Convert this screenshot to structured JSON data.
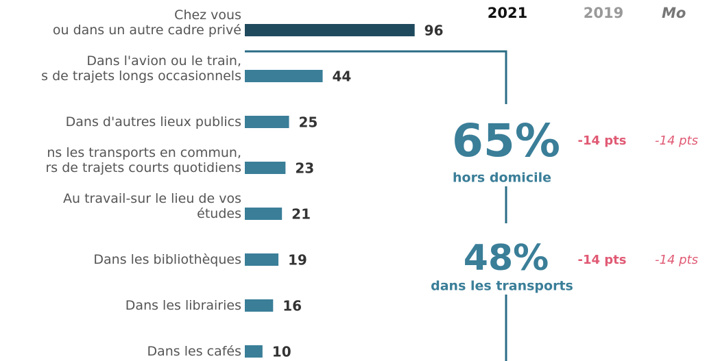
{
  "chart_data": {
    "type": "bar",
    "orientation": "horizontal",
    "categories": [
      [
        "Chez vous",
        "ou dans un autre cadre privé"
      ],
      [
        "Dans l'avion ou le train,",
        "s de trajets longs occasionnels"
      ],
      [
        "Dans d'autres lieux publics"
      ],
      [
        "ns les transports en commun,",
        "rs de trajets courts quotidiens"
      ],
      [
        "Au travail-sur le lieu de vos",
        "études"
      ],
      [
        "Dans les bibliothèques"
      ],
      [
        "Dans les librairies"
      ],
      [
        "Dans les cafés"
      ]
    ],
    "values": [
      96,
      44,
      25,
      23,
      21,
      19,
      16,
      10
    ],
    "colors": [
      "#1f4a5e",
      "#3a7e98",
      "#3a7e98",
      "#3a7e98",
      "#3a7e98",
      "#3a7e98",
      "#3a7e98",
      "#3a7e98"
    ],
    "xlim": [
      0,
      100
    ],
    "column_headers": [
      "2021",
      "2019",
      "Mo"
    ],
    "annotations": [
      {
        "headline": "65%",
        "label": "hors domicile",
        "change_2019": "-14 pts",
        "change_mo": "-14 pts"
      },
      {
        "headline": "48%",
        "label": "dans les transports",
        "change_2019": "-14 pts",
        "change_mo": "-14 pts"
      }
    ]
  }
}
